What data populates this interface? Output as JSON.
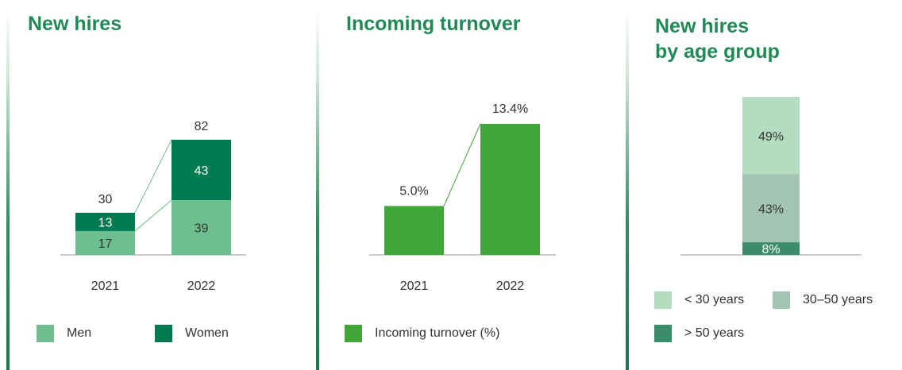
{
  "colors": {
    "title": "#1f8a55",
    "men": "#6dbf8f",
    "women": "#007a52",
    "turnover": "#40a838",
    "under30": "#b3dcc1",
    "from30to50": "#a3c4b3",
    "over50": "#3a8c6a"
  },
  "chart_data": [
    {
      "type": "bar",
      "stacked": true,
      "title": "New hires",
      "categories": [
        "2021",
        "2022"
      ],
      "series": [
        {
          "name": "Men",
          "values": [
            17,
            39
          ]
        },
        {
          "name": "Women",
          "values": [
            13,
            43
          ]
        }
      ],
      "totals": [
        "30",
        "82"
      ],
      "value_labels": {
        "Men": [
          "17",
          "39"
        ],
        "Women": [
          "13",
          "43"
        ]
      },
      "legend": [
        "Men",
        "Women"
      ]
    },
    {
      "type": "bar",
      "title": "Incoming turnover",
      "categories": [
        "2021",
        "2022"
      ],
      "series": [
        {
          "name": "Incoming turnover (%)",
          "values": [
            5.0,
            13.4
          ]
        }
      ],
      "value_labels": [
        "5.0%",
        "13.4%"
      ],
      "legend": [
        "Incoming turnover (%)"
      ]
    },
    {
      "type": "bar",
      "stacked": true,
      "title": "New hires\nby age group",
      "categories": [
        ""
      ],
      "series": [
        {
          "name": "> 50 years",
          "values": [
            8
          ]
        },
        {
          "name": "30–50 years",
          "values": [
            43
          ]
        },
        {
          "name": "< 30 years",
          "values": [
            49
          ]
        }
      ],
      "value_labels": {
        "> 50 years": "8%",
        "30–50 years": "43%",
        "< 30 years": "49%"
      },
      "legend": [
        "< 30 years",
        "30–50 years",
        "> 50 years"
      ]
    }
  ]
}
